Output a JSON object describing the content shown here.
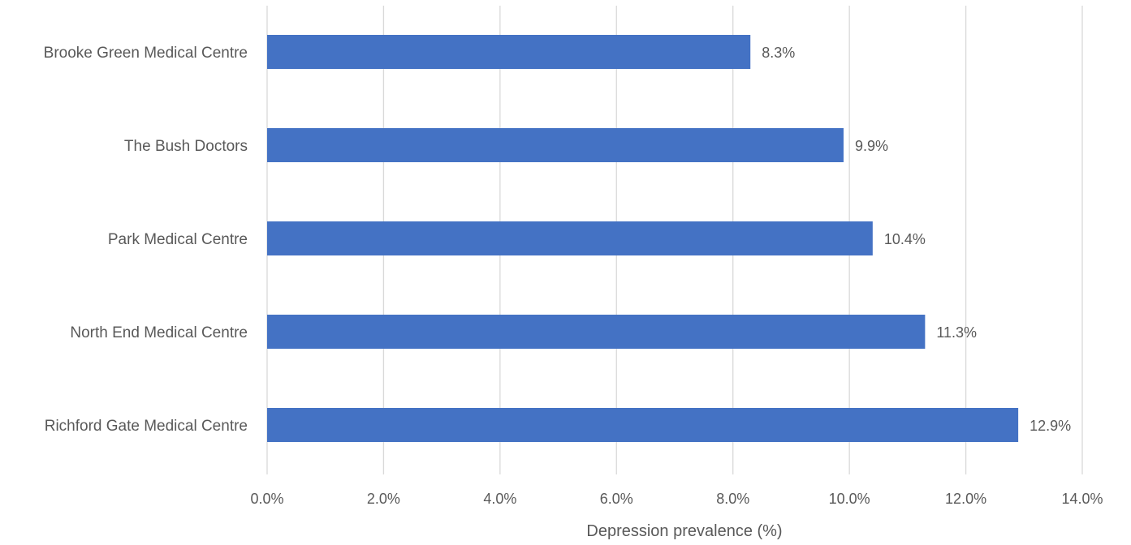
{
  "colors": {
    "bar": "#4472C4",
    "gridline": "#D9D9D9",
    "text": "#595959"
  },
  "chart_data": {
    "type": "bar",
    "orientation": "horizontal",
    "title": "",
    "xlabel": "Depression prevalence (%)",
    "ylabel": "",
    "categories": [
      "Brooke Green Medical Centre",
      "The Bush Doctors",
      "Park Medical Centre",
      "North End Medical Centre",
      "Richford Gate Medical Centre"
    ],
    "values": [
      8.3,
      9.9,
      10.4,
      11.3,
      12.9
    ],
    "data_labels": [
      "8.3%",
      "9.9%",
      "10.4%",
      "11.3%",
      "12.9%"
    ],
    "xlim": [
      0,
      14
    ],
    "x_ticks": [
      0,
      2,
      4,
      6,
      8,
      10,
      12,
      14
    ],
    "x_tick_labels": [
      "0.0%",
      "2.0%",
      "4.0%",
      "6.0%",
      "8.0%",
      "10.0%",
      "12.0%",
      "14.0%"
    ],
    "grid": "vertical",
    "legend": "none"
  }
}
